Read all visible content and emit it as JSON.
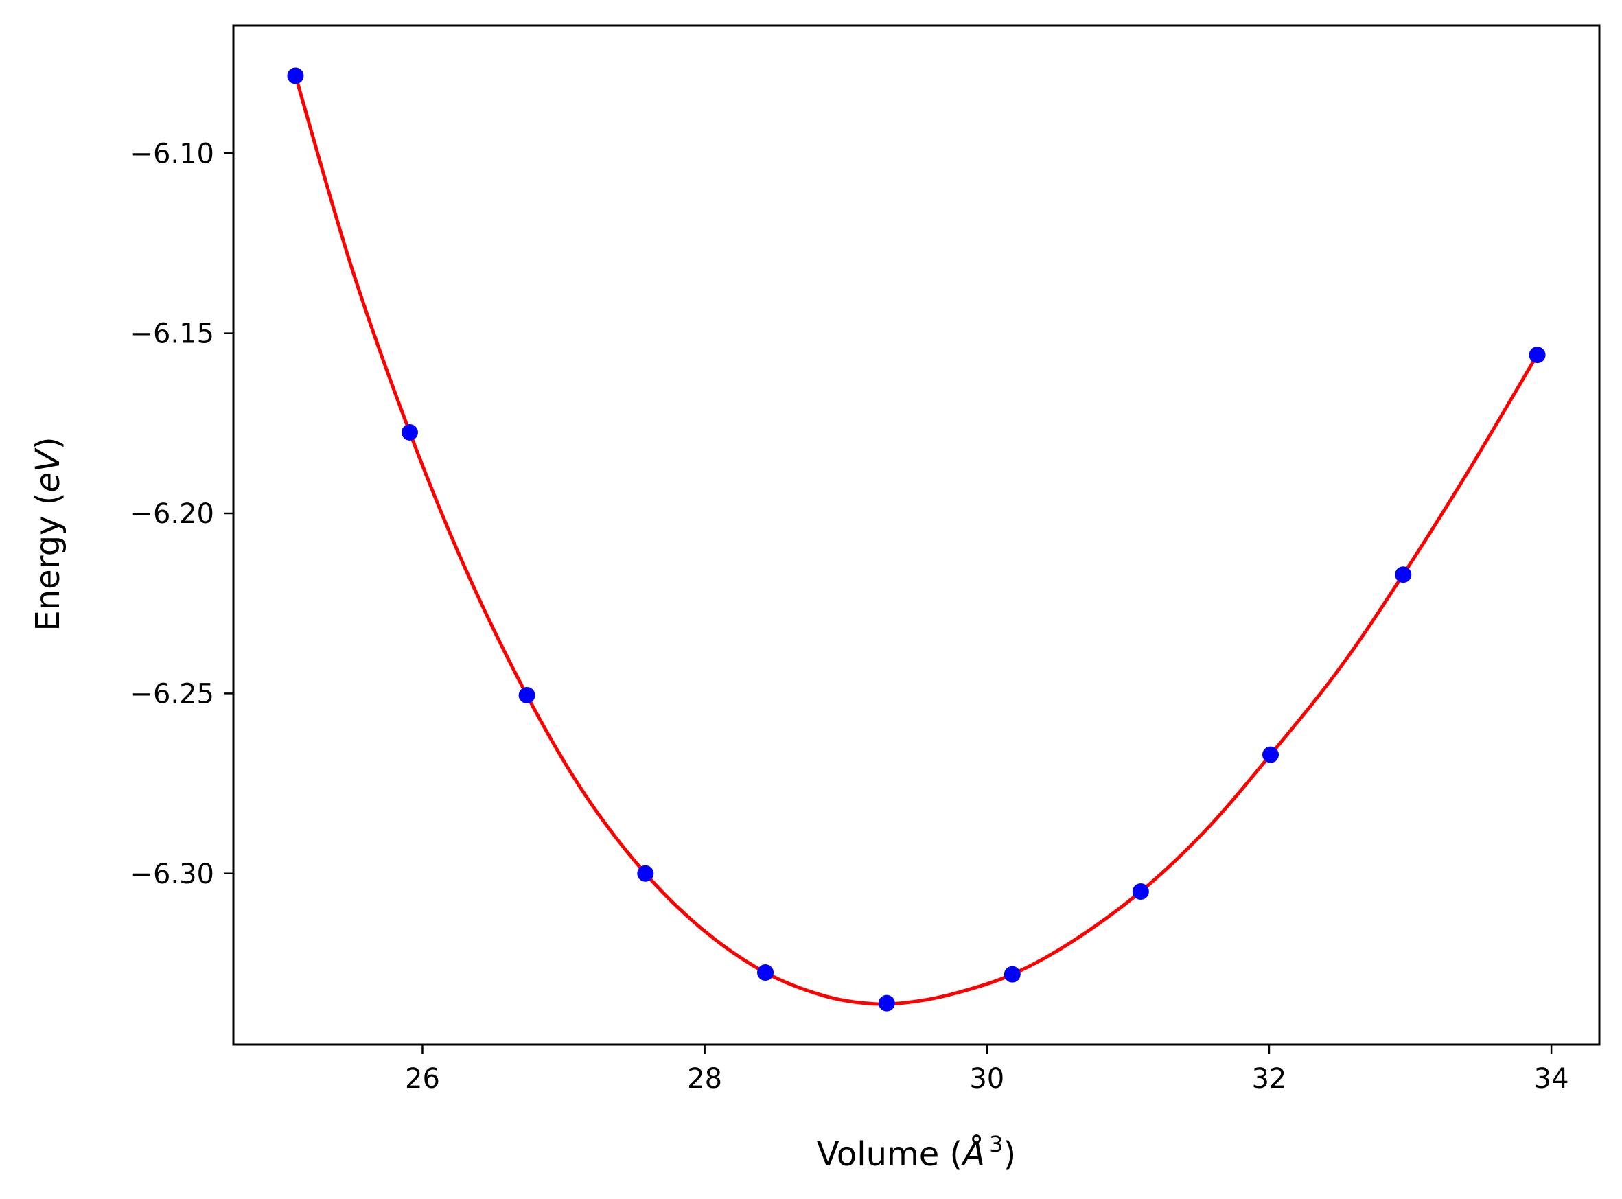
{
  "chart_data": {
    "type": "line",
    "title": "",
    "xlabel": {
      "prefix": "Volume (",
      "symbol": "Å",
      "exponent": "3",
      "suffix": ")"
    },
    "ylabel": {
      "prefix": "Energy (",
      "unit": "eV",
      "suffix": ")"
    },
    "xlim": [
      24.66,
      34.34
    ],
    "ylim": [
      -6.3475,
      -6.0645
    ],
    "x_ticks": [
      26,
      28,
      30,
      32,
      34
    ],
    "x_tick_labels": [
      "26",
      "28",
      "30",
      "32",
      "34"
    ],
    "y_ticks": [
      -6.1,
      -6.15,
      -6.2,
      -6.25,
      -6.3
    ],
    "y_tick_labels": [
      "−6.10",
      "−6.15",
      "−6.20",
      "−6.25",
      "−6.30"
    ],
    "grid": false,
    "legend": "none",
    "series": [
      {
        "kind": "scatter",
        "color": "#0000ff",
        "points": [
          {
            "x": 25.1,
            "y": -6.0785
          },
          {
            "x": 25.91,
            "y": -6.1775
          },
          {
            "x": 26.74,
            "y": -6.2505
          },
          {
            "x": 27.58,
            "y": -6.3
          },
          {
            "x": 28.43,
            "y": -6.3275
          },
          {
            "x": 29.29,
            "y": -6.336
          },
          {
            "x": 30.18,
            "y": -6.328
          },
          {
            "x": 31.09,
            "y": -6.305
          },
          {
            "x": 32.01,
            "y": -6.267
          },
          {
            "x": 32.95,
            "y": -6.217
          },
          {
            "x": 33.9,
            "y": -6.156
          }
        ]
      },
      {
        "kind": "line",
        "color": "#ff0000",
        "points": [
          {
            "x": 25.1,
            "y": -6.0785
          },
          {
            "x": 25.5,
            "y": -6.132
          },
          {
            "x": 25.91,
            "y": -6.1775
          },
          {
            "x": 26.3,
            "y": -6.215
          },
          {
            "x": 26.74,
            "y": -6.2505
          },
          {
            "x": 27.15,
            "y": -6.278
          },
          {
            "x": 27.58,
            "y": -6.3
          },
          {
            "x": 28.0,
            "y": -6.316
          },
          {
            "x": 28.43,
            "y": -6.3275
          },
          {
            "x": 28.85,
            "y": -6.334
          },
          {
            "x": 29.2,
            "y": -6.3362
          },
          {
            "x": 29.5,
            "y": -6.3355
          },
          {
            "x": 29.8,
            "y": -6.333
          },
          {
            "x": 30.18,
            "y": -6.328
          },
          {
            "x": 30.6,
            "y": -6.319
          },
          {
            "x": 31.09,
            "y": -6.305
          },
          {
            "x": 31.55,
            "y": -6.288
          },
          {
            "x": 32.01,
            "y": -6.267
          },
          {
            "x": 32.5,
            "y": -6.243
          },
          {
            "x": 32.95,
            "y": -6.217
          },
          {
            "x": 33.4,
            "y": -6.189
          },
          {
            "x": 33.9,
            "y": -6.156
          }
        ]
      }
    ]
  }
}
